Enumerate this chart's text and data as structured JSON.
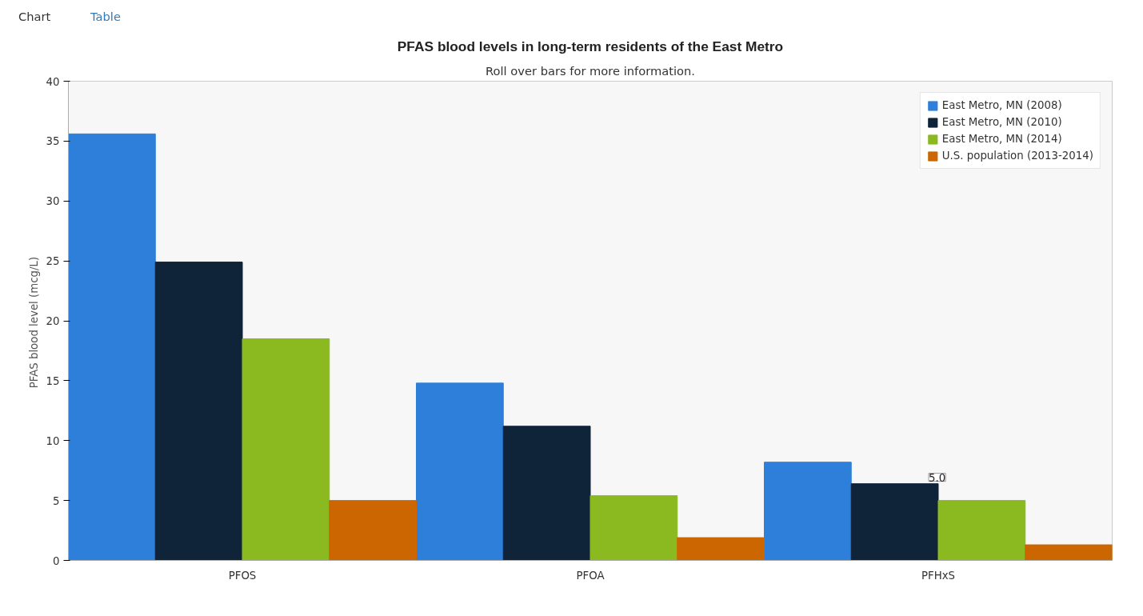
{
  "chart_data": {
    "type": "bar",
    "title": "PFAS blood levels in long-term residents of the East Metro",
    "subtitle": "Roll over bars for more information.",
    "ylabel": "PFAS blood level  (mcg/L)",
    "categories": [
      "PFOS",
      "PFOA",
      "PFHxS"
    ],
    "series": [
      {
        "name": "East Metro, MN (2008)",
        "color": "#2e7fd9",
        "values": [
          35.6,
          14.8,
          8.2
        ]
      },
      {
        "name": "East Metro, MN (2010)",
        "color": "#0f2339",
        "values": [
          24.9,
          11.2,
          6.4
        ]
      },
      {
        "name": "East Metro, MN (2014)",
        "color": "#8ab920",
        "values": [
          18.5,
          5.4,
          5.0
        ]
      },
      {
        "name": "U.S. population (2013-2014)",
        "color": "#cc6600",
        "values": [
          5.0,
          1.9,
          1.3
        ]
      }
    ],
    "ylim": [
      0,
      40
    ],
    "yticks": [
      0,
      5,
      10,
      15,
      20,
      25,
      30,
      35,
      40
    ],
    "grid": false,
    "legend": "top right",
    "annotations": [
      "Chart",
      "Table",
      {
        "text": "5.0",
        "x": "PFHxS",
        "y": 5.0
      }
    ]
  }
}
